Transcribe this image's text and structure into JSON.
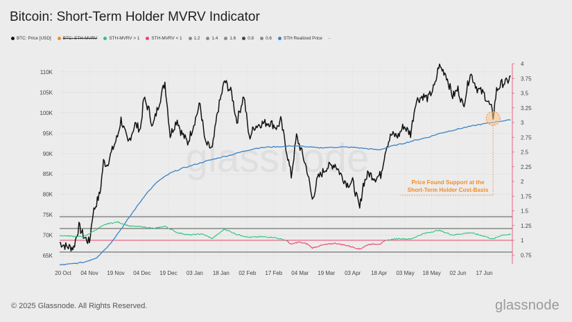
{
  "page": {
    "title": "Bitcoin: Short-Term Holder MVRV Indicator",
    "copyright": "© 2025 Glassnode. All Rights Reserved.",
    "brand": "glassnode",
    "watermark": "glassnode"
  },
  "legend": [
    {
      "label": "BTC: Price [USD]",
      "color": "#111111",
      "struck": false
    },
    {
      "label": "BTC: STH-MVRV",
      "color": "#f28c28",
      "struck": true
    },
    {
      "label": "STH-MVRV > 1",
      "color": "#2ec27e",
      "struck": false
    },
    {
      "label": "STH-MVRV < 1",
      "color": "#e8436b",
      "struck": false
    },
    {
      "label": "1.2",
      "color": "#8a8a8a",
      "struck": false
    },
    {
      "label": "1.4",
      "color": "#8a8a8a",
      "struck": false
    },
    {
      "label": "1.6",
      "color": "#8a8a8a",
      "struck": false
    },
    {
      "label": "0.8",
      "color": "#444444",
      "struck": false
    },
    {
      "label": "0.6",
      "color": "#8a8a8a",
      "struck": false
    },
    {
      "label": "STH Realized Price",
      "color": "#3b82c4",
      "struck": false
    },
    {
      "label": "-",
      "color": "",
      "struck": false
    }
  ],
  "annotation": {
    "line1": "Price Found Support at the",
    "line2": "Short-Term Holder Cost-Basis",
    "color": "#f28c28"
  },
  "chart_data": {
    "type": "line",
    "x_ticks": [
      "20 Oct",
      "04 Nov",
      "19 Nov",
      "04 Dec",
      "19 Dec",
      "03 Jan",
      "18 Jan",
      "02 Feb",
      "17 Feb",
      "04 Mar",
      "19 Mar",
      "03 Apr",
      "18 Apr",
      "03 May",
      "18 May",
      "02 Jun",
      "17 Jun"
    ],
    "y_left_ticks": [
      "65K",
      "70K",
      "75K",
      "80K",
      "85K",
      "90K",
      "95K",
      "100K",
      "105K",
      "110K"
    ],
    "y_left_range": [
      63000,
      112000
    ],
    "y_right_ticks": [
      "0.75",
      "1",
      "1.25",
      "1.5",
      "1.75",
      "2",
      "2.25",
      "2.5",
      "2.75",
      "3",
      "3.25",
      "3.5",
      "3.75",
      "4"
    ],
    "y_right_range": [
      0.6,
      4.0
    ],
    "mvrv_levels": [
      {
        "label": "1.4",
        "value": 1.4
      },
      {
        "label": "1.2",
        "value": 1.2
      },
      {
        "label": "1",
        "value": 1.0
      },
      {
        "label": "0.8",
        "value": 0.8
      }
    ],
    "x_start": "2024-10-18",
    "grid": true,
    "series": [
      {
        "name": "BTC: Price [USD]",
        "color": "#111111",
        "axis": "left",
        "points": [
          [
            "2024-10-18",
            68200
          ],
          [
            "2024-10-22",
            67200
          ],
          [
            "2024-10-26",
            67000
          ],
          [
            "2024-10-29",
            72200
          ],
          [
            "2024-11-01",
            69500
          ],
          [
            "2024-11-04",
            68300
          ],
          [
            "2024-11-06",
            75500
          ],
          [
            "2024-11-10",
            80300
          ],
          [
            "2024-11-12",
            88000
          ],
          [
            "2024-11-14",
            87300
          ],
          [
            "2024-11-17",
            90800
          ],
          [
            "2024-11-20",
            94200
          ],
          [
            "2024-11-22",
            98400
          ],
          [
            "2024-11-26",
            92500
          ],
          [
            "2024-11-30",
            97200
          ],
          [
            "2024-12-03",
            95900
          ],
          [
            "2024-12-05",
            103500
          ],
          [
            "2024-12-08",
            100500
          ],
          [
            "2024-12-10",
            96500
          ],
          [
            "2024-12-13",
            101400
          ],
          [
            "2024-12-17",
            107500
          ],
          [
            "2024-12-20",
            94500
          ],
          [
            "2024-12-24",
            98400
          ],
          [
            "2024-12-26",
            95500
          ],
          [
            "2024-12-30",
            92600
          ],
          [
            "2025-01-03",
            98000
          ],
          [
            "2025-01-06",
            102200
          ],
          [
            "2025-01-09",
            92500
          ],
          [
            "2025-01-13",
            91000
          ],
          [
            "2025-01-16",
            100200
          ],
          [
            "2025-01-20",
            107800
          ],
          [
            "2025-01-24",
            104800
          ],
          [
            "2025-01-27",
            97800
          ],
          [
            "2025-01-31",
            104300
          ],
          [
            "2025-02-03",
            93800
          ],
          [
            "2025-02-06",
            96600
          ],
          [
            "2025-02-10",
            97400
          ],
          [
            "2025-02-15",
            97600
          ],
          [
            "2025-02-19",
            96300
          ],
          [
            "2025-02-21",
            98200
          ],
          [
            "2025-02-24",
            91500
          ],
          [
            "2025-02-27",
            84500
          ],
          [
            "2025-03-02",
            94200
          ],
          [
            "2025-03-05",
            90300
          ],
          [
            "2025-03-08",
            86000
          ],
          [
            "2025-03-11",
            78600
          ],
          [
            "2025-03-14",
            83800
          ],
          [
            "2025-03-19",
            86600
          ],
          [
            "2025-03-24",
            87400
          ],
          [
            "2025-03-28",
            84300
          ],
          [
            "2025-03-31",
            82500
          ],
          [
            "2025-04-03",
            83100
          ],
          [
            "2025-04-07",
            76500
          ],
          [
            "2025-04-09",
            82500
          ],
          [
            "2025-04-12",
            85200
          ],
          [
            "2025-04-16",
            84000
          ],
          [
            "2025-04-19",
            84800
          ],
          [
            "2025-04-22",
            91500
          ],
          [
            "2025-04-25",
            94600
          ],
          [
            "2025-04-29",
            94300
          ],
          [
            "2025-05-02",
            96800
          ],
          [
            "2025-05-06",
            94800
          ],
          [
            "2025-05-09",
            102900
          ],
          [
            "2025-05-13",
            104100
          ],
          [
            "2025-05-16",
            103500
          ],
          [
            "2025-05-20",
            106800
          ],
          [
            "2025-05-22",
            111500
          ],
          [
            "2025-05-26",
            109600
          ],
          [
            "2025-05-30",
            104000
          ],
          [
            "2025-06-02",
            105800
          ],
          [
            "2025-06-05",
            101500
          ],
          [
            "2025-06-09",
            109800
          ],
          [
            "2025-06-13",
            105900
          ],
          [
            "2025-06-17",
            104500
          ],
          [
            "2025-06-21",
            101000
          ],
          [
            "2025-06-22",
            99000
          ],
          [
            "2025-06-24",
            105500
          ],
          [
            "2025-06-27",
            107200
          ],
          [
            "2025-06-30",
            107500
          ],
          [
            "2025-07-02",
            108900
          ]
        ]
      },
      {
        "name": "STH Realized Price",
        "color": "#3b82c4",
        "axis": "left",
        "points": [
          [
            "2024-10-18",
            62700
          ],
          [
            "2024-10-25",
            63000
          ],
          [
            "2024-11-01",
            63400
          ],
          [
            "2024-11-08",
            64500
          ],
          [
            "2024-11-15",
            67500
          ],
          [
            "2024-11-22",
            71500
          ],
          [
            "2024-11-29",
            75800
          ],
          [
            "2024-12-06",
            80000
          ],
          [
            "2024-12-13",
            83200
          ],
          [
            "2024-12-20",
            85200
          ],
          [
            "2024-12-27",
            86400
          ],
          [
            "2025-01-03",
            87300
          ],
          [
            "2025-01-10",
            88200
          ],
          [
            "2025-01-17",
            89000
          ],
          [
            "2025-01-24",
            89700
          ],
          [
            "2025-01-31",
            90600
          ],
          [
            "2025-02-07",
            91300
          ],
          [
            "2025-02-14",
            91600
          ],
          [
            "2025-02-21",
            91700
          ],
          [
            "2025-02-28",
            91900
          ],
          [
            "2025-03-07",
            91700
          ],
          [
            "2025-03-14",
            91400
          ],
          [
            "2025-03-21",
            91500
          ],
          [
            "2025-03-28",
            91600
          ],
          [
            "2025-04-04",
            91500
          ],
          [
            "2025-04-11",
            91200
          ],
          [
            "2025-04-18",
            90900
          ],
          [
            "2025-04-25",
            91800
          ],
          [
            "2025-05-02",
            92500
          ],
          [
            "2025-05-09",
            93300
          ],
          [
            "2025-05-16",
            94000
          ],
          [
            "2025-05-23",
            95000
          ],
          [
            "2025-05-30",
            95700
          ],
          [
            "2025-06-06",
            96400
          ],
          [
            "2025-06-13",
            97000
          ],
          [
            "2025-06-20",
            97500
          ],
          [
            "2025-06-27",
            98000
          ],
          [
            "2025-07-02",
            98200
          ]
        ]
      },
      {
        "name": "BTC: STH-MVRV",
        "color_above": "#2ec27e",
        "color_below": "#e8436b",
        "axis": "right",
        "points": [
          [
            "2024-10-18",
            1.08
          ],
          [
            "2024-10-25",
            1.07
          ],
          [
            "2024-11-01",
            1.06
          ],
          [
            "2024-11-06",
            1.15
          ],
          [
            "2024-11-10",
            1.22
          ],
          [
            "2024-11-14",
            1.28
          ],
          [
            "2024-11-20",
            1.31
          ],
          [
            "2024-11-27",
            1.24
          ],
          [
            "2024-12-04",
            1.23
          ],
          [
            "2024-12-11",
            1.2
          ],
          [
            "2024-12-17",
            1.24
          ],
          [
            "2024-12-24",
            1.13
          ],
          [
            "2024-12-31",
            1.09
          ],
          [
            "2025-01-07",
            1.11
          ],
          [
            "2025-01-13",
            1.03
          ],
          [
            "2025-01-20",
            1.19
          ],
          [
            "2025-01-27",
            1.1
          ],
          [
            "2025-02-03",
            1.05
          ],
          [
            "2025-02-10",
            1.06
          ],
          [
            "2025-02-17",
            1.05
          ],
          [
            "2025-02-24",
            1.0
          ],
          [
            "2025-02-27",
            0.93
          ],
          [
            "2025-03-03",
            0.97
          ],
          [
            "2025-03-08",
            0.94
          ],
          [
            "2025-03-11",
            0.87
          ],
          [
            "2025-03-17",
            0.92
          ],
          [
            "2025-03-24",
            0.95
          ],
          [
            "2025-03-31",
            0.91
          ],
          [
            "2025-04-07",
            0.85
          ],
          [
            "2025-04-12",
            0.93
          ],
          [
            "2025-04-19",
            0.94
          ],
          [
            "2025-04-22",
            1.0
          ],
          [
            "2025-04-29",
            1.03
          ],
          [
            "2025-05-06",
            1.02
          ],
          [
            "2025-05-13",
            1.11
          ],
          [
            "2025-05-22",
            1.17
          ],
          [
            "2025-05-30",
            1.09
          ],
          [
            "2025-06-09",
            1.13
          ],
          [
            "2025-06-17",
            1.07
          ],
          [
            "2025-06-22",
            1.02
          ],
          [
            "2025-06-27",
            1.09
          ],
          [
            "2025-07-02",
            1.1
          ]
        ]
      }
    ]
  }
}
